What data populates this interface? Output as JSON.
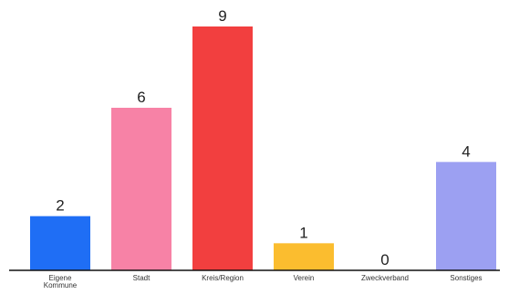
{
  "chart_data": {
    "type": "bar",
    "categories": [
      [
        "Eigene",
        "Kommune"
      ],
      [
        "Stadt"
      ],
      [
        "Kreis/Region"
      ],
      [
        "Verein"
      ],
      [
        "Zweckverband"
      ],
      [
        "Sonstiges"
      ]
    ],
    "values": [
      2,
      6,
      9,
      1,
      0,
      4
    ],
    "colors": [
      "#1f6ef5",
      "#f782a6",
      "#f23f3f",
      "#fbbd2f",
      "#ffffff",
      "#9ca0f2"
    ],
    "ylim": [
      0,
      9
    ],
    "grid": false,
    "legend": "none",
    "title": "",
    "xlabel": "",
    "ylabel": ""
  }
}
